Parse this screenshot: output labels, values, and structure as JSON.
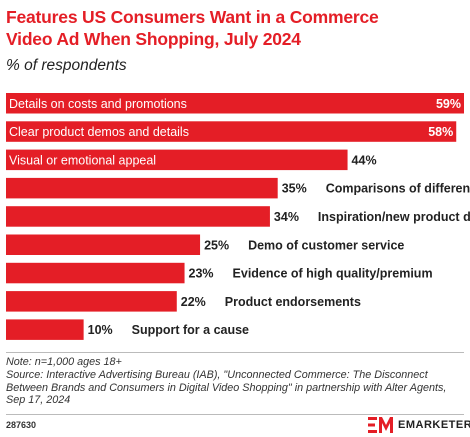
{
  "chart_data": {
    "type": "bar",
    "orientation": "horizontal",
    "title": "Features US Consumers Want in a Commerce Video Ad When Shopping, July 2024",
    "subtitle": "% of respondents",
    "categories": [
      "Details on costs and promotions",
      "Clear product demos and details",
      "Visual or emotional appeal",
      "Comparisons of different products",
      "Inspiration/new product discovery",
      "Demo of customer service",
      "Evidence of high quality/premium",
      "Product endorsements",
      "Support for a cause"
    ],
    "values": [
      59,
      58,
      44,
      35,
      34,
      25,
      23,
      22,
      10
    ],
    "value_labels": [
      "59%",
      "58%",
      "44%",
      "35%",
      "34%",
      "25%",
      "23%",
      "22%",
      "10%"
    ],
    "xlim": [
      0,
      59
    ],
    "bar_color": "#e41e26",
    "grid": false,
    "legend": "none"
  },
  "title_line1": "Features US Consumers Want in a Commerce",
  "title_line2": "Video Ad When Shopping, July 2024",
  "subtitle": "% of respondents",
  "note_lines": [
    "Note: n=1,000 ages 18+",
    "Source: Interactive Advertising Bureau (IAB), \"Unconnected Commerce: The Disconnect",
    "Between Brands and Consumers in Digital Video Shopping\" in partnership with Alter Agents,",
    "Sep 17, 2024"
  ],
  "chart_id": "287630",
  "brand_name": "EMARKETER",
  "colors": {
    "accent": "#e41e26",
    "text": "#222222"
  }
}
